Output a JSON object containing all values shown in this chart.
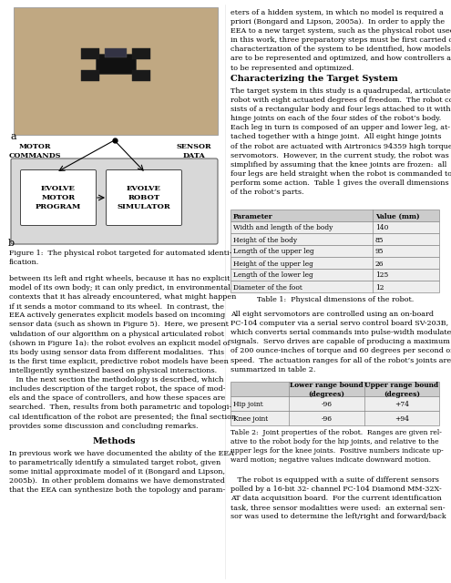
{
  "font_family": "DejaVu Serif",
  "body_fontsize": 5.8,
  "caption_fontsize": 5.8,
  "section_fontsize": 7.0,
  "small_fontsize": 5.4,
  "right_col_top_text": "eters of a hidden system, in which no model is required a\npriori (Bongard and Lipson, 2005a).  In order to apply the\nEEA to a new target system, such as the physical robot used\nin this work, three preparatory steps must be first carried out:\ncharacterization of the system to be identified, how models\nare to be represented and optimized, and how controllers are\nto be represented and optimized.",
  "section_title": "Characterizing the Target System",
  "section_body": "The target system in this study is a quadrupedal, articulated\nrobot with eight actuated degrees of freedom.  The robot con-\nsists of a rectangular body and four legs attached to it with\nhinge joints on each of the four sides of the robot’s body.\nEach leg in turn is composed of an upper and lower leg, at-\ntached together with a hinge joint.  All eight hinge joints\nof the robot are actuated with Airtronics 94359 high torque\nservomotors.  However, in the current study, the robot was\nsimplified by assuming that the knee joints are frozen:  all\nfour legs are held straight when the robot is commanded to\nperform some action.  Table 1 gives the overall dimensions\nof the robot’s parts.",
  "table1_headers": [
    "Parameter",
    "Value (mm)"
  ],
  "table1_rows": [
    [
      "Width and length of the body",
      "140"
    ],
    [
      "Height of the body",
      "85"
    ],
    [
      "Length of the upper leg",
      "95"
    ],
    [
      "Height of the upper leg",
      "26"
    ],
    [
      "Length of the lower leg",
      "125"
    ],
    [
      "Diameter of the foot",
      "12"
    ]
  ],
  "table1_caption": "Table 1:  Physical dimensions of the robot.",
  "table2_text_before": "All eight servomotors are controlled using an on-board\nPC-104 computer via a serial servo control board SV-203B,\nwhich converts serial commands into pulse-width modulated\nsignals.  Servo drives are capable of producing a maximum\nof 200 ounce-inches of torque and 60 degrees per second of\nspeed.  The actuation ranges for all of the robot’s joints are\nsummarized in table 2.",
  "table2_headers": [
    "",
    "Lower range bound\n(degrees)",
    "Upper range bound\n(degrees)"
  ],
  "table2_rows": [
    [
      "Hip joint",
      "-96",
      "+74"
    ],
    [
      "Knee joint",
      "-96",
      "+94"
    ]
  ],
  "table2_caption": "Table 2:  Joint properties of the robot.  Ranges are given rel-\native to the robot body for the hip joints, and relative to the\nupper legs for the knee joints.  Positive numbers indicate up-\nward motion; negative values indicate downward motion.",
  "table2_after": "   The robot is equipped with a suite of different sensors\npolled by a 16-bit 32- channel PC-104 Diamond MM-32X-\nAT data acquisition board.  For the current identification\ntask, three sensor modalities were used:  an external sen-\nsor was used to determine the left/right and forward/back",
  "left_col_body_text": "between its left and right wheels, because it has no explicit\nmodel of its own body; it can only predict, in environmental\ncontexts that it has already encountered, what might happen\nif it sends a motor command to its wheel.  In contrast, the\nEEA actively generates explicit models based on incoming\nsensor data (such as shown in Figure 5).  Here, we present\nvalidation of our algorithm on a physical articulated robot\n(shown in Figure 1a): the robot evolves an explicit model of\nits body using sensor data from different modalities.  This\nis the first time explicit, predictive robot models have been\nintelligently synthesized based on physical interactions.\n   In the next section the methodology is described, which\nincludes description of the target robot, the space of mod-\nels and the space of controllers, and how these spaces are\nsearched.  Then, results from both parametric and topologi-\ncal identification of the robot are presented; the final section\nprovides some discussion and concluding remarks.",
  "methods_title": "Methods",
  "methods_body": "In previous work we have documented the ability of the EEA\nto parametrically identify a simulated target robot, given\nsome initial approximate model of it (Bongard and Lipson,\n2005b).  In other problem domains we have demonstrated\nthat the EEA can synthesize both the topology and param-",
  "fig1_caption": "Figure 1:  The physical robot targeted for automated identi-\nfication.",
  "diagram_labels": {
    "motor_commands": "MOTOR\nCOMMANDS",
    "sensor_data": "SENSOR\nDATA",
    "evolve_motor": "EVOLVE\nMOTOR\nPROGRAM",
    "evolve_robot": "EVOLVE\nROBOT\nSIMULATOR",
    "label_a": "a",
    "label_b": "b"
  },
  "photo_color": "#c0a882",
  "photo_edge": "#999999",
  "robot_dark": "#1a1a1a",
  "diagram_outer_fill": "#d8d8d8",
  "diagram_box_fill": "#ffffff",
  "table_header_fill": "#cccccc",
  "table_row_fill": "#eeeeee",
  "table_border": "#888888"
}
